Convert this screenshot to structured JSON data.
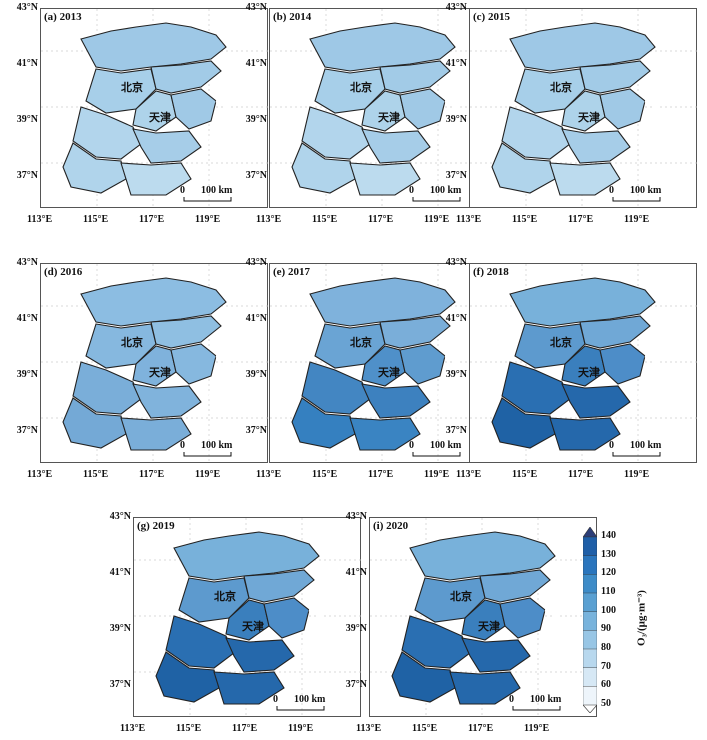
{
  "panels": [
    {
      "label": "(a) 2013",
      "level": 2
    },
    {
      "label": "(b) 2014",
      "level": 2
    },
    {
      "label": "(c) 2015",
      "level": 2
    },
    {
      "label": "(d) 2016",
      "level": 3
    },
    {
      "label": "(e) 2017",
      "level": 4
    },
    {
      "label": "(f) 2018",
      "level": 5
    },
    {
      "label": "(g) 2019",
      "level": 5
    },
    {
      "label": "(i) 2020",
      "level": 5
    }
  ],
  "map_labels": {
    "beijing": "北京",
    "tianjin": "天津"
  },
  "scale_bar": {
    "zero": "0",
    "dist": "100 km"
  },
  "lat_ticks": [
    "43°N",
    "41°N",
    "39°N",
    "37°N"
  ],
  "lon_ticks": [
    "113°E",
    "115°E",
    "117°E",
    "119°E"
  ],
  "colorbar": {
    "title": "O₃/(μg·m⁻³)",
    "ticks": [
      "140",
      "130",
      "120",
      "110",
      "100",
      "90",
      "80",
      "70",
      "60",
      "50"
    ],
    "colors": [
      "#2c3e78",
      "#1f5fa8",
      "#2a75bd",
      "#3e8cc8",
      "#5aa0d2",
      "#78b3dc",
      "#98c6e5",
      "#b8d8ee",
      "#d6e8f5",
      "#eef5fb"
    ]
  }
}
